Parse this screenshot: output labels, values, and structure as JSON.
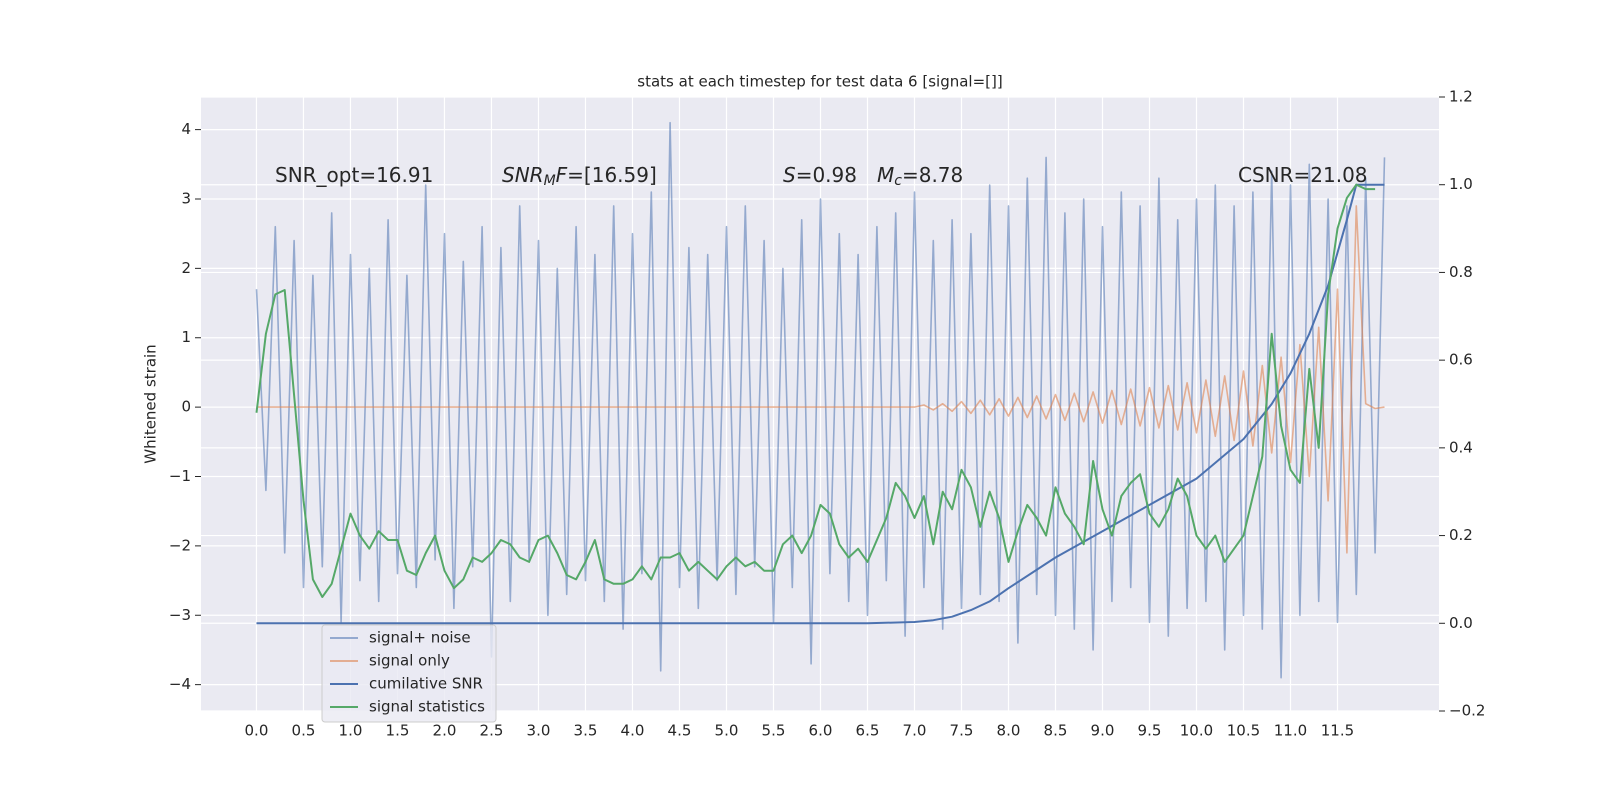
{
  "chart_data": {
    "type": "line",
    "title": "stats at each timestep for test data 6 [signal=[]]",
    "ylabel": "Whitened strain",
    "xlim": [
      -0.59,
      12.58
    ],
    "ylim": [
      -4.38,
      4.47
    ],
    "y2lim": [
      -0.2,
      1.2
    ],
    "xticks": [
      {
        "value": 0,
        "label": "0.0"
      },
      0.5,
      {
        "value": 1,
        "label": "1.0"
      },
      1.5,
      {
        "value": 2,
        "label": "2.0"
      },
      2.5,
      {
        "value": 3,
        "label": "3.0"
      },
      3.5,
      {
        "value": 4,
        "label": "4.0"
      },
      4.5,
      {
        "value": 5,
        "label": "5.0"
      },
      5.5,
      {
        "value": 6,
        "label": "6.0"
      },
      6.5,
      {
        "value": 7,
        "label": "7.0"
      },
      7.5,
      {
        "value": 8,
        "label": "8.0"
      },
      8.5,
      {
        "value": 9,
        "label": "9.0"
      },
      9.5,
      {
        "value": 10,
        "label": "10.0"
      },
      10.5,
      {
        "value": 11,
        "label": "11.0"
      },
      11.5
    ],
    "yticks": [
      {
        "value": -4,
        "label": "−4"
      },
      {
        "value": -3,
        "label": "−3"
      },
      {
        "value": -2,
        "label": "−2"
      },
      {
        "value": -1,
        "label": "−1"
      },
      0,
      1,
      2,
      3,
      4
    ],
    "y2ticks": [
      {
        "value": -0.2,
        "label": "−0.2"
      },
      {
        "value": 0,
        "label": "0.0"
      },
      0.2,
      0.4,
      0.6,
      0.8,
      {
        "value": 1,
        "label": "1.0"
      },
      1.2
    ],
    "grid": true,
    "legend_loc": "lower left",
    "annotations": [
      {
        "parts": [
          {
            "text": "SNR_opt=16.91"
          }
        ]
      },
      {
        "parts": [
          {
            "text": "SNR",
            "italic": true
          },
          {
            "text": "M",
            "italic": true,
            "sub": true
          },
          {
            "text": "F",
            "italic": true
          },
          {
            "text": "=[16.59]"
          }
        ]
      },
      {
        "parts": [
          {
            "text": "S",
            "italic": true
          },
          {
            "text": "=0.98"
          }
        ]
      },
      {
        "parts": [
          {
            "text": "M",
            "italic": true
          },
          {
            "text": "c",
            "italic": true,
            "sub": true
          },
          {
            "text": "=8.78"
          }
        ]
      },
      {
        "parts": [
          {
            "text": "CSNR=21.08"
          }
        ]
      }
    ],
    "series": [
      {
        "name": "signal+ noise",
        "color": "#4c72b0",
        "alpha": 0.55,
        "x": [
          0,
          0.1,
          0.2,
          0.3,
          0.4,
          0.5,
          0.6,
          0.7,
          0.8,
          0.9,
          1,
          1.1,
          1.2,
          1.3,
          1.4,
          1.5,
          1.6,
          1.7,
          1.8,
          1.9,
          2,
          2.1,
          2.2,
          2.3,
          2.4,
          2.5,
          2.6,
          2.7,
          2.8,
          2.9,
          3,
          3.1,
          3.2,
          3.3,
          3.4,
          3.5,
          3.6,
          3.7,
          3.8,
          3.9,
          4,
          4.1,
          4.2,
          4.3,
          4.4,
          4.5,
          4.6,
          4.7,
          4.8,
          4.9,
          5,
          5.1,
          5.2,
          5.3,
          5.4,
          5.5,
          5.6,
          5.7,
          5.8,
          5.9,
          6,
          6.1,
          6.2,
          6.3,
          6.4,
          6.5,
          6.6,
          6.7,
          6.8,
          6.9,
          7,
          7.1,
          7.2,
          7.3,
          7.4,
          7.5,
          7.6,
          7.7,
          7.8,
          7.9,
          8,
          8.1,
          8.2,
          8.3,
          8.4,
          8.5,
          8.6,
          8.7,
          8.8,
          8.9,
          9,
          9.1,
          9.2,
          9.3,
          9.4,
          9.5,
          9.6,
          9.7,
          9.8,
          9.9,
          10,
          10.1,
          10.2,
          10.3,
          10.4,
          10.5,
          10.6,
          10.7,
          10.8,
          10.9,
          11,
          11.1,
          11.2,
          11.3,
          11.4,
          11.5,
          11.6,
          11.7,
          11.8,
          11.9,
          12
        ],
        "values": [
          1.7,
          -1.2,
          2.6,
          -2.1,
          2.4,
          -2.6,
          1.9,
          -2.3,
          2.8,
          -3.1,
          2.2,
          -2.5,
          2.0,
          -2.8,
          2.7,
          -2.4,
          1.9,
          -2.6,
          3.2,
          -2.2,
          2.5,
          -2.9,
          2.1,
          -2.3,
          2.6,
          -3.6,
          2.3,
          -2.8,
          2.9,
          -2.2,
          2.4,
          -3.0,
          2.0,
          -2.7,
          2.6,
          -2.5,
          2.2,
          -2.8,
          2.9,
          -3.2,
          2.5,
          -2.4,
          3.1,
          -3.8,
          4.1,
          -2.6,
          2.3,
          -2.9,
          2.2,
          -2.5,
          2.6,
          -2.7,
          2.9,
          -2.3,
          2.4,
          -3.1,
          2.0,
          -2.6,
          2.7,
          -3.7,
          3.0,
          -2.4,
          2.5,
          -2.8,
          2.2,
          -3.0,
          2.6,
          -2.5,
          2.8,
          -3.3,
          3.1,
          -2.6,
          2.4,
          -3.2,
          2.7,
          -2.9,
          2.5,
          -2.7,
          3.2,
          -2.8,
          2.9,
          -3.4,
          3.3,
          -2.7,
          3.6,
          -3.0,
          2.8,
          -3.2,
          3.0,
          -3.5,
          2.6,
          -2.8,
          3.1,
          -2.6,
          2.9,
          -3.1,
          3.3,
          -3.3,
          2.7,
          -2.9,
          3.0,
          -2.8,
          3.2,
          -3.5,
          2.9,
          -3.0,
          3.1,
          -3.2,
          3.4,
          -3.9,
          3.2,
          -3.0,
          3.5,
          -2.8,
          3.0,
          -3.1,
          2.9,
          -2.7,
          3.3,
          -2.1,
          3.6
        ]
      },
      {
        "name": "signal only",
        "color": "#dd8452",
        "alpha": 0.6,
        "x": [
          0,
          0.1,
          0.2,
          0.3,
          0.4,
          0.5,
          0.6,
          0.7,
          0.8,
          0.9,
          1,
          1.1,
          1.2,
          1.3,
          1.4,
          1.5,
          1.6,
          1.7,
          1.8,
          1.9,
          2,
          2.1,
          2.2,
          2.3,
          2.4,
          2.5,
          2.6,
          2.7,
          2.8,
          2.9,
          3,
          3.1,
          3.2,
          3.3,
          3.4,
          3.5,
          3.6,
          3.7,
          3.8,
          3.9,
          4,
          4.1,
          4.2,
          4.3,
          4.4,
          4.5,
          4.6,
          4.7,
          4.8,
          4.9,
          5,
          5.1,
          5.2,
          5.3,
          5.4,
          5.5,
          5.6,
          5.7,
          5.8,
          5.9,
          6,
          6.1,
          6.2,
          6.3,
          6.4,
          6.5,
          6.6,
          6.7,
          6.8,
          6.9,
          7,
          7.1,
          7.2,
          7.3,
          7.4,
          7.5,
          7.6,
          7.7,
          7.8,
          7.9,
          8,
          8.1,
          8.2,
          8.3,
          8.4,
          8.5,
          8.6,
          8.7,
          8.8,
          8.9,
          9,
          9.1,
          9.2,
          9.3,
          9.4,
          9.5,
          9.6,
          9.7,
          9.8,
          9.9,
          10,
          10.1,
          10.2,
          10.3,
          10.4,
          10.5,
          10.6,
          10.7,
          10.8,
          10.9,
          11,
          11.1,
          11.2,
          11.3,
          11.4,
          11.5,
          11.6,
          11.7,
          11.8,
          11.9,
          12
        ],
        "values": [
          0,
          0,
          0,
          0,
          0,
          0,
          0,
          0,
          0,
          0,
          0,
          0,
          0,
          0,
          0,
          0,
          0,
          0,
          0,
          0,
          0,
          0,
          0,
          0,
          0,
          0,
          0,
          0,
          0,
          0,
          0,
          0,
          0,
          0,
          0,
          0,
          0,
          0,
          0,
          0,
          0,
          0,
          0,
          0,
          0,
          0,
          0,
          0,
          0,
          0,
          0,
          0,
          0,
          0,
          0,
          0,
          0,
          0,
          0,
          0,
          0,
          0,
          0,
          0,
          0,
          0,
          0,
          0,
          0,
          0,
          0,
          0.03,
          -0.04,
          0.05,
          -0.06,
          0.08,
          -0.09,
          0.1,
          -0.11,
          0.12,
          -0.13,
          0.14,
          -0.15,
          0.16,
          -0.17,
          0.18,
          -0.19,
          0.2,
          -0.21,
          0.22,
          -0.23,
          0.24,
          -0.25,
          0.26,
          -0.27,
          0.28,
          -0.3,
          0.31,
          -0.33,
          0.35,
          -0.37,
          0.39,
          -0.42,
          0.45,
          -0.48,
          0.52,
          -0.56,
          0.6,
          -0.66,
          0.72,
          -0.8,
          0.9,
          -1.0,
          1.15,
          -1.35,
          1.7,
          -2.1,
          2.9,
          0.05,
          -0.02,
          0
        ]
      },
      {
        "name": "cumilative SNR",
        "color": "#4c72b0",
        "alpha": 1,
        "axis": "y2",
        "x": [
          0,
          1,
          2,
          3,
          4,
          5,
          6,
          6.5,
          7,
          7.2,
          7.4,
          7.6,
          7.8,
          8,
          8.5,
          9,
          9.5,
          10,
          10.5,
          10.8,
          11,
          11.2,
          11.4,
          11.6,
          11.7,
          12
        ],
        "values": [
          0,
          0,
          0,
          0,
          0,
          0,
          0,
          0,
          0.003,
          0.007,
          0.015,
          0.03,
          0.05,
          0.08,
          0.15,
          0.21,
          0.27,
          0.33,
          0.42,
          0.5,
          0.57,
          0.66,
          0.77,
          0.92,
          1.0,
          1.0
        ]
      },
      {
        "name": "signal statistics",
        "color": "#55a868",
        "alpha": 1,
        "axis": "y2",
        "x": [
          0,
          0.1,
          0.2,
          0.3,
          0.4,
          0.5,
          0.6,
          0.7,
          0.8,
          0.9,
          1,
          1.1,
          1.2,
          1.3,
          1.4,
          1.5,
          1.6,
          1.7,
          1.8,
          1.9,
          2,
          2.1,
          2.2,
          2.3,
          2.4,
          2.5,
          2.6,
          2.7,
          2.8,
          2.9,
          3,
          3.1,
          3.2,
          3.3,
          3.4,
          3.5,
          3.6,
          3.7,
          3.8,
          3.9,
          4,
          4.1,
          4.2,
          4.3,
          4.4,
          4.5,
          4.6,
          4.7,
          4.8,
          4.9,
          5,
          5.1,
          5.2,
          5.3,
          5.4,
          5.5,
          5.6,
          5.7,
          5.8,
          5.9,
          6,
          6.1,
          6.2,
          6.3,
          6.4,
          6.5,
          6.6,
          6.7,
          6.8,
          6.9,
          7,
          7.1,
          7.2,
          7.3,
          7.4,
          7.5,
          7.6,
          7.7,
          7.8,
          7.9,
          8,
          8.1,
          8.2,
          8.3,
          8.4,
          8.5,
          8.6,
          8.7,
          8.8,
          8.9,
          9,
          9.1,
          9.2,
          9.3,
          9.4,
          9.5,
          9.6,
          9.7,
          9.8,
          9.9,
          10,
          10.1,
          10.2,
          10.3,
          10.4,
          10.5,
          10.6,
          10.7,
          10.8,
          10.9,
          11,
          11.1,
          11.2,
          11.3,
          11.4,
          11.5,
          11.6,
          11.7,
          11.8,
          11.9
        ],
        "values": [
          0.48,
          0.66,
          0.75,
          0.76,
          0.52,
          0.28,
          0.1,
          0.06,
          0.09,
          0.17,
          0.25,
          0.2,
          0.17,
          0.21,
          0.19,
          0.19,
          0.12,
          0.11,
          0.16,
          0.2,
          0.12,
          0.08,
          0.1,
          0.15,
          0.14,
          0.16,
          0.19,
          0.18,
          0.15,
          0.14,
          0.19,
          0.2,
          0.16,
          0.11,
          0.1,
          0.14,
          0.19,
          0.1,
          0.09,
          0.09,
          0.1,
          0.13,
          0.1,
          0.15,
          0.15,
          0.16,
          0.12,
          0.14,
          0.12,
          0.1,
          0.13,
          0.15,
          0.13,
          0.14,
          0.12,
          0.12,
          0.18,
          0.2,
          0.16,
          0.2,
          0.27,
          0.25,
          0.18,
          0.15,
          0.17,
          0.14,
          0.19,
          0.24,
          0.32,
          0.29,
          0.24,
          0.29,
          0.18,
          0.3,
          0.26,
          0.35,
          0.31,
          0.22,
          0.3,
          0.24,
          0.14,
          0.21,
          0.27,
          0.24,
          0.2,
          0.31,
          0.25,
          0.22,
          0.18,
          0.37,
          0.26,
          0.2,
          0.29,
          0.32,
          0.34,
          0.25,
          0.22,
          0.26,
          0.33,
          0.29,
          0.2,
          0.17,
          0.2,
          0.14,
          0.17,
          0.2,
          0.29,
          0.38,
          0.66,
          0.45,
          0.35,
          0.32,
          0.58,
          0.4,
          0.75,
          0.9,
          0.97,
          1.0,
          0.99,
          0.99
        ]
      }
    ]
  }
}
